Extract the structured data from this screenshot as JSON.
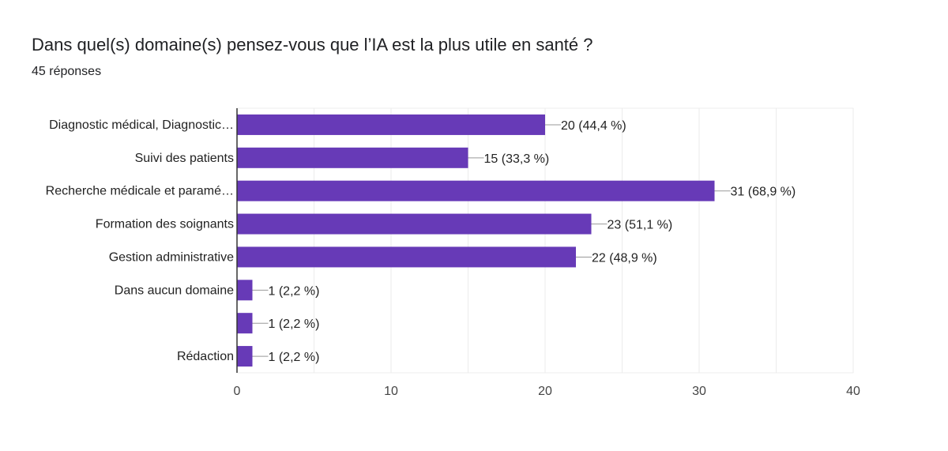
{
  "chart_data": {
    "type": "bar",
    "orientation": "horizontal",
    "title": "Dans quel(s) domaine(s) pensez-vous que l’IA est la plus utile en santé ?",
    "subtitle": "45 réponses",
    "categories": [
      "Diagnostic médical, Diagnostic…",
      "Suivi des patients",
      "Recherche médicale et paramé…",
      "Formation des soignants",
      "Gestion administrative",
      "Dans aucun domaine",
      "",
      "Rédaction"
    ],
    "values": [
      20,
      15,
      31,
      23,
      22,
      1,
      1,
      1
    ],
    "data_labels": [
      "20 (44,4 %)",
      "15 (33,3 %)",
      "31 (68,9 %)",
      "23 (51,1 %)",
      "22 (48,9 %)",
      "1 (2,2 %)",
      "1 (2,2 %)",
      "1 (2,2 %)"
    ],
    "xlim": [
      0,
      40
    ],
    "xticks": [
      "0",
      "10",
      "20",
      "30",
      "40"
    ],
    "grid": true,
    "bar_color": "#673ab7"
  }
}
